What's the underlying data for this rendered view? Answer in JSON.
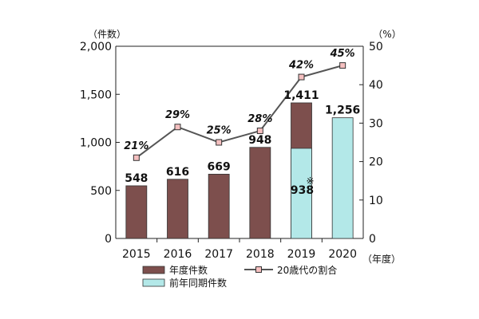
{
  "chart_data": {
    "type": "bar",
    "categories": [
      "2015",
      "2016",
      "2017",
      "2018",
      "2019",
      "2020"
    ],
    "bar_series": [
      {
        "name": "年度件数",
        "color": "#7d4f4d",
        "values": [
          548,
          616,
          669,
          948,
          1411,
          null
        ]
      },
      {
        "name": "前年同期件数",
        "color": "#b3e8e8",
        "values": [
          null,
          null,
          null,
          null,
          938,
          1256
        ]
      }
    ],
    "line_series": {
      "name": "20歳代の割合",
      "color": "#555555",
      "marker_color": "#f5c0c0",
      "values": [
        21,
        29,
        25,
        28,
        42,
        45
      ],
      "labels": [
        "21%",
        "29%",
        "25%",
        "28%",
        "42%",
        "45%"
      ]
    },
    "bar_labels": [
      "548",
      "616",
      "669",
      "948",
      "1,411",
      "1,256"
    ],
    "inner_label": "938",
    "note_mark": "※",
    "left_axis": {
      "unit": "（件数）",
      "ylim": [
        0,
        2000
      ],
      "ticks": [
        0,
        500,
        1000,
        1500,
        2000
      ],
      "tick_labels": [
        "0",
        "500",
        "1,000",
        "1,500",
        "2,000"
      ]
    },
    "right_axis": {
      "unit": "（%）",
      "ylim": [
        0,
        50
      ],
      "ticks": [
        0,
        10,
        20,
        30,
        40,
        50
      ],
      "tick_labels": [
        "0",
        "10",
        "20",
        "30",
        "40",
        "50"
      ]
    },
    "x_unit": "（年度）",
    "legend_placement": "bottom",
    "grid": false
  }
}
